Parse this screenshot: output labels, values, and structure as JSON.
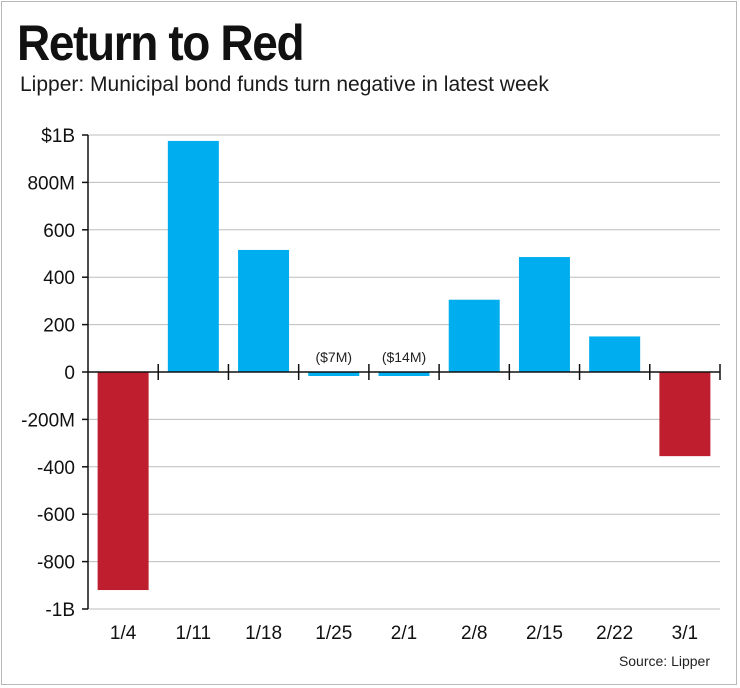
{
  "title": "Return to Red",
  "subtitle": "Lipper: Municipal bond funds turn negative in latest week",
  "source": "Source: Lipper",
  "chart_data": {
    "type": "bar",
    "categories": [
      "1/4",
      "1/11",
      "1/18",
      "1/25",
      "2/1",
      "2/8",
      "2/15",
      "2/22",
      "3/1"
    ],
    "values": [
      -920,
      975,
      515,
      -7,
      -14,
      305,
      485,
      150,
      -355
    ],
    "value_unit": "millions of dollars",
    "ylim": [
      -1000,
      1000
    ],
    "yticks": [
      1000,
      800,
      600,
      400,
      200,
      0,
      -200,
      -400,
      -600,
      -800,
      -1000
    ],
    "ytick_labels": [
      "$1B",
      "800M",
      "600",
      "400",
      "200",
      "0",
      "-200M",
      "-400",
      "-600",
      "-800",
      "-1B"
    ],
    "data_labels": [
      "",
      "",
      "",
      "($7M)",
      "($14M)",
      "",
      "",
      "",
      ""
    ],
    "grid": true,
    "colors": {
      "positive": "#00adef",
      "negative": "#bf1e2e",
      "grid": "#bdbdbd",
      "axis": "#111111"
    }
  }
}
